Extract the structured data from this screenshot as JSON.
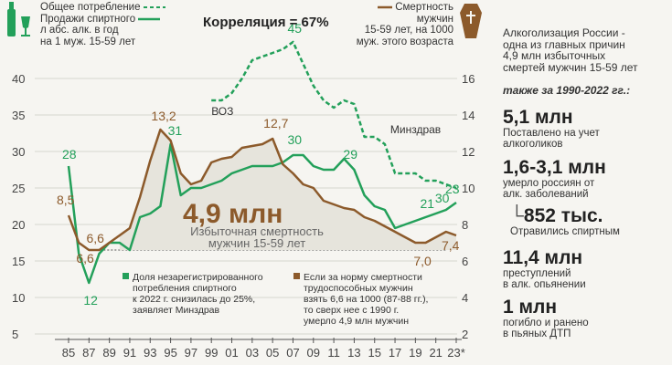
{
  "chart_data": {
    "type": "line",
    "title": "Корреляция = 67%",
    "x": [
      85,
      86,
      87,
      88,
      89,
      90,
      91,
      92,
      93,
      94,
      95,
      96,
      97,
      98,
      99,
      100,
      101,
      102,
      103,
      104,
      105,
      106,
      107,
      108,
      109,
      110,
      111,
      112,
      113,
      114,
      115,
      116,
      117,
      118,
      119,
      120,
      121,
      122,
      123
    ],
    "x_tick_labels": [
      "85",
      "87",
      "89",
      "91",
      "93",
      "95",
      "97",
      "99",
      "01",
      "03",
      "05",
      "07",
      "09",
      "11",
      "13",
      "15",
      "17",
      "19",
      "21",
      "23*"
    ],
    "left_axis": {
      "ticks": [
        5,
        10,
        15,
        20,
        25,
        30,
        35,
        40
      ],
      "ylim": [
        5,
        41
      ]
    },
    "right_axis": {
      "ticks": [
        2,
        4,
        6,
        8,
        10,
        12,
        14,
        16
      ],
      "ylim": [
        2,
        17
      ]
    },
    "series": [
      {
        "name": "Продажи спиртного л абс. алк. в год на 1 муж. 15-59 лет",
        "axis": "left",
        "color": "#23a05a",
        "x": [
          85,
          86,
          87,
          88,
          89,
          90,
          91,
          92,
          93,
          94,
          95,
          96,
          97,
          98,
          99,
          100,
          101,
          102,
          103,
          104,
          105,
          106,
          107,
          108,
          109,
          110,
          111,
          112,
          113,
          114,
          115,
          116,
          117,
          118,
          119,
          120,
          121,
          122,
          123
        ],
        "values": [
          28,
          16,
          12,
          16,
          17.5,
          17.5,
          16.5,
          21,
          21.5,
          22.5,
          31,
          24,
          25,
          25,
          25.5,
          26,
          27,
          27.5,
          28,
          28,
          28,
          28.5,
          29.5,
          29.5,
          28,
          27.5,
          27.5,
          29,
          27.5,
          24,
          22.5,
          22,
          19.5,
          20,
          20.5,
          21,
          21.5,
          22,
          23
        ]
      },
      {
        "name": "Общее потребление",
        "axis": "left",
        "color": "#23a05a",
        "dashed": true,
        "x": [
          99,
          100,
          101,
          102,
          103,
          104,
          105,
          106,
          107,
          108,
          109,
          110,
          111,
          112,
          113,
          114,
          115,
          116,
          117,
          118,
          119,
          120,
          121,
          122,
          123
        ],
        "values": [
          37,
          37,
          38,
          40,
          42.5,
          43,
          43.5,
          44,
          45,
          42,
          39,
          37,
          36,
          37,
          36.5,
          32,
          32,
          31,
          27,
          27,
          27,
          26,
          26,
          25.5,
          25
        ]
      },
      {
        "name": "Смертность мужчин 15-59 лет, на 1000 муж. этого возраста",
        "axis": "right",
        "color": "#8c5a2b",
        "x": [
          85,
          86,
          87,
          88,
          89,
          90,
          91,
          92,
          93,
          94,
          95,
          96,
          97,
          98,
          99,
          100,
          101,
          102,
          103,
          104,
          105,
          106,
          107,
          108,
          109,
          110,
          111,
          112,
          113,
          114,
          115,
          116,
          117,
          118,
          119,
          120,
          121,
          122,
          123
        ],
        "values": [
          8.5,
          7.0,
          6.6,
          6.6,
          7.0,
          7.4,
          7.8,
          9.5,
          11.5,
          13.2,
          12.6,
          10.8,
          10.2,
          10.4,
          11.4,
          11.6,
          11.7,
          12.2,
          12.3,
          12.4,
          12.7,
          11.3,
          10.8,
          10.2,
          10.0,
          9.3,
          9.1,
          8.9,
          8.8,
          8.4,
          8.2,
          7.9,
          7.6,
          7.3,
          7.0,
          7.0,
          7.3,
          7.6,
          7.4
        ]
      }
    ],
    "annotations": [
      "28",
      "12",
      "31",
      "30",
      "29",
      "21",
      "23",
      "45",
      "30",
      "8,5",
      "6,6",
      "13,2",
      "12,7",
      "7,0",
      "7,4",
      "ВОЗ",
      "Минздрав"
    ],
    "baseline_label": "6,6"
  },
  "legend": {
    "total": "Общее потребление",
    "sales": [
      "Продажи спиртного",
      "л абс. алк. в год",
      "на 1 муж. 15-59 лет"
    ],
    "mortality": [
      "Смертность мужчин",
      "15-59 лет, на 1000",
      "муж. этого возраста"
    ]
  },
  "correlation": "Корреляция = 67%",
  "center": {
    "value": "4,9 млн",
    "text": [
      "Избыточная смертность",
      "мужчин 15-59 лет"
    ]
  },
  "notes": {
    "green": [
      "Доля незарегистрированного",
      "потребления спиртного",
      "к 2022 г. снизилась до 25%,",
      "заявляет Минздрав"
    ],
    "brown": [
      "Если за норму смертности",
      "трудоспособных мужчин",
      "взять 6,6 на 1000 (87-88 гг.),",
      "то сверх нее с 1990 г.",
      "умерло 4,9 млн мужчин"
    ]
  },
  "side": {
    "intro": [
      "Алкоголизация России -",
      "одна из главных причин",
      "4,9 млн избыточных",
      "смертей мужчин 15-59 лет"
    ],
    "subtitle": "также за 1990-2022 гг.:",
    "facts": [
      {
        "value": "5,1 млн",
        "text": [
          "Поставлено на учет",
          "алкоголиков"
        ]
      },
      {
        "value": "1,6-3,1 млн",
        "text": [
          "умерло россиян от",
          "алк. заболеваний"
        ]
      },
      {
        "value": "852 тыс.",
        "text": [
          "Отравились спиртным"
        ]
      },
      {
        "value": "11,4 млн",
        "text": [
          "преступлений",
          "в алк. опьянении"
        ]
      },
      {
        "value": "1 млн",
        "text": [
          "погибло и ранено",
          "в пьяных ДТП"
        ]
      }
    ]
  },
  "colors": {
    "green": "#23a05a",
    "brown": "#8c5a2b",
    "grid": "#d6d6d0"
  }
}
